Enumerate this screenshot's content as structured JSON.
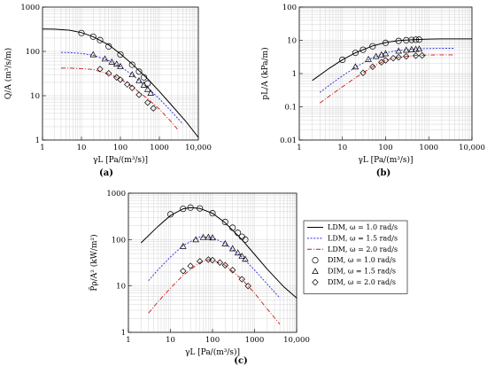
{
  "chart_data": [
    {
      "type": "line",
      "panel_label": "(a)",
      "xlabel": "γL [Pa/(m³/s)]",
      "ylabel": "Q/A (m³/s/m)",
      "xscale": "log",
      "yscale": "log",
      "xlim": [
        1,
        10000
      ],
      "ylim": [
        1,
        1000
      ],
      "xticks": [
        "1",
        "10",
        "100",
        "1000",
        "10,000"
      ],
      "yticks": [
        "1",
        "10",
        "100",
        "1000"
      ],
      "grid": true,
      "series": [
        {
          "name": "LDM, ω = 1.0 rad/s",
          "style": "solid",
          "color": "#000000",
          "x": [
            1,
            2,
            5,
            10,
            20,
            50,
            100,
            200,
            500,
            1000,
            2000,
            5000,
            10000
          ],
          "y": [
            320,
            318,
            300,
            265,
            215,
            140,
            88,
            52,
            24,
            12.5,
            6.3,
            2.5,
            1.15
          ]
        },
        {
          "name": "LDM, ω = 1.5 rad/s",
          "style": "dotted",
          "color": "#2a2ad8",
          "x": [
            3,
            5,
            10,
            20,
            50,
            100,
            200,
            500,
            1000,
            2000,
            4000
          ],
          "y": [
            95,
            94,
            90,
            82,
            62,
            45,
            30,
            15,
            8.5,
            4.5,
            2.3
          ]
        },
        {
          "name": "LDM, ω = 2.0 rad/s",
          "style": "dashdot",
          "color": "#cc1a1a",
          "x": [
            3,
            5,
            10,
            20,
            50,
            100,
            200,
            500,
            1000,
            2000,
            3000
          ],
          "y": [
            42,
            42,
            41,
            39,
            31,
            24,
            16,
            8.5,
            5,
            2.6,
            1.7
          ]
        },
        {
          "name": "DIM, ω = 1.0 rad/s",
          "marker": "circle",
          "x": [
            10,
            20,
            30,
            50,
            100,
            200,
            300,
            400,
            500
          ],
          "y": [
            260,
            215,
            180,
            130,
            85,
            50,
            35,
            26,
            19
          ]
        },
        {
          "name": "DIM, ω = 1.5 rad/s",
          "marker": "triangle",
          "x": [
            20,
            40,
            60,
            80,
            100,
            200,
            300,
            400,
            500,
            600
          ],
          "y": [
            85,
            68,
            58,
            52,
            46,
            30,
            22,
            17.5,
            14,
            11.5
          ]
        },
        {
          "name": "DIM, ω = 2.0 rad/s",
          "marker": "diamond",
          "x": [
            30,
            50,
            80,
            100,
            150,
            200,
            300,
            500,
            700
          ],
          "y": [
            40,
            32,
            26,
            23,
            18,
            15,
            10.5,
            7,
            5.2
          ]
        }
      ]
    },
    {
      "type": "line",
      "panel_label": "(b)",
      "xlabel": "γL [Pa/(m³/s)]",
      "ylabel": "pL/A (kPa/m)",
      "xscale": "log",
      "yscale": "log",
      "xlim": [
        1,
        10000
      ],
      "ylim": [
        0.01,
        100
      ],
      "xticks": [
        "1",
        "10",
        "100",
        "1000",
        "10,000"
      ],
      "yticks": [
        "0.01",
        "0.1",
        "1",
        "10",
        "100"
      ],
      "grid": true,
      "series": [
        {
          "name": "LDM, ω = 1.0 rad/s",
          "style": "solid",
          "color": "#000000",
          "x": [
            2,
            5,
            10,
            20,
            50,
            100,
            200,
            500,
            1000,
            2000,
            5000,
            10000
          ],
          "y": [
            0.62,
            1.45,
            2.6,
            4.2,
            6.8,
            8.6,
            9.8,
            10.6,
            10.9,
            11,
            11,
            11
          ]
        },
        {
          "name": "LDM, ω = 1.5 rad/s",
          "style": "dotted",
          "color": "#2a2ad8",
          "x": [
            3,
            5,
            10,
            20,
            50,
            100,
            200,
            500,
            1000,
            2000,
            4000
          ],
          "y": [
            0.27,
            0.45,
            0.85,
            1.55,
            3,
            4.2,
            5,
            5.5,
            5.7,
            5.75,
            5.75
          ]
        },
        {
          "name": "LDM, ω = 2.0 rad/s",
          "style": "dashdot",
          "color": "#cc1a1a",
          "x": [
            3,
            5,
            10,
            20,
            50,
            100,
            200,
            500,
            1000,
            2000,
            4000
          ],
          "y": [
            0.13,
            0.21,
            0.4,
            0.75,
            1.6,
            2.5,
            3.1,
            3.5,
            3.6,
            3.65,
            3.65
          ]
        },
        {
          "name": "DIM, ω = 1.0 rad/s",
          "marker": "circle",
          "x": [
            10,
            20,
            30,
            50,
            100,
            200,
            300,
            400,
            500,
            600
          ],
          "y": [
            2.6,
            4.2,
            5.2,
            6.6,
            8.4,
            9.6,
            10.1,
            10.3,
            10.4,
            10.5
          ]
        },
        {
          "name": "DIM, ω = 1.5 rad/s",
          "marker": "triangle",
          "x": [
            20,
            40,
            60,
            80,
            100,
            200,
            300,
            400,
            500,
            600
          ],
          "y": [
            1.6,
            2.7,
            3.3,
            3.7,
            4,
            4.8,
            5.1,
            5.3,
            5.4,
            5.5
          ]
        },
        {
          "name": "DIM, ω = 2.0 rad/s",
          "marker": "diamond",
          "x": [
            30,
            50,
            80,
            100,
            150,
            200,
            300,
            500,
            700
          ],
          "y": [
            1.05,
            1.6,
            2.2,
            2.5,
            2.9,
            3.1,
            3.3,
            3.45,
            3.5
          ]
        }
      ]
    },
    {
      "type": "line",
      "panel_label": "(c)",
      "xlabel": "γL [Pa/(m³/s)]",
      "ylabel": "P̄ρ/A² (kW/m²)",
      "xscale": "log",
      "yscale": "log",
      "xlim": [
        1,
        10000
      ],
      "ylim": [
        1,
        1000
      ],
      "xticks": [
        "1",
        "10",
        "100",
        "1000",
        "10,000"
      ],
      "yticks": [
        "1",
        "10",
        "100",
        "1000"
      ],
      "grid": true,
      "legend": "right",
      "series": [
        {
          "name": "LDM, ω = 1.0 rad/s",
          "style": "solid",
          "color": "#000000",
          "x": [
            2,
            5,
            10,
            20,
            30,
            50,
            100,
            200,
            500,
            1000,
            2000,
            5000,
            10000
          ],
          "y": [
            85,
            190,
            330,
            460,
            490,
            470,
            370,
            230,
            100,
            48,
            23,
            9.5,
            5.5
          ]
        },
        {
          "name": "LDM, ω = 1.5 rad/s",
          "style": "dotted",
          "color": "#2a2ad8",
          "x": [
            3,
            5,
            10,
            20,
            50,
            100,
            200,
            500,
            1000,
            2000,
            4000
          ],
          "y": [
            13,
            22,
            42,
            75,
            115,
            110,
            82,
            42,
            22,
            11,
            5.5
          ]
        },
        {
          "name": "LDM, ω = 2.0 rad/s",
          "style": "dashdot",
          "color": "#cc1a1a",
          "x": [
            3,
            5,
            10,
            20,
            50,
            80,
            100,
            200,
            500,
            1000,
            2000,
            4000
          ],
          "y": [
            2.6,
            4.5,
            9,
            17,
            32,
            37,
            36,
            28,
            14,
            7,
            3.2,
            1.5
          ]
        },
        {
          "name": "DIM, ω = 1.0 rad/s",
          "marker": "circle",
          "x": [
            10,
            20,
            30,
            50,
            100,
            200,
            300,
            400,
            500,
            600
          ],
          "y": [
            350,
            460,
            490,
            470,
            370,
            240,
            180,
            140,
            115,
            100
          ]
        },
        {
          "name": "DIM, ω = 1.5 rad/s",
          "marker": "triangle",
          "x": [
            20,
            40,
            60,
            80,
            100,
            200,
            300,
            400,
            500,
            600
          ],
          "y": [
            72,
            100,
            112,
            113,
            110,
            82,
            64,
            52,
            44,
            38
          ]
        },
        {
          "name": "DIM, ω = 2.0 rad/s",
          "marker": "diamond",
          "x": [
            20,
            30,
            50,
            80,
            100,
            150,
            200,
            300,
            500,
            700
          ],
          "y": [
            21,
            27,
            34,
            37,
            36,
            32,
            28,
            22,
            14,
            10
          ]
        }
      ]
    }
  ]
}
